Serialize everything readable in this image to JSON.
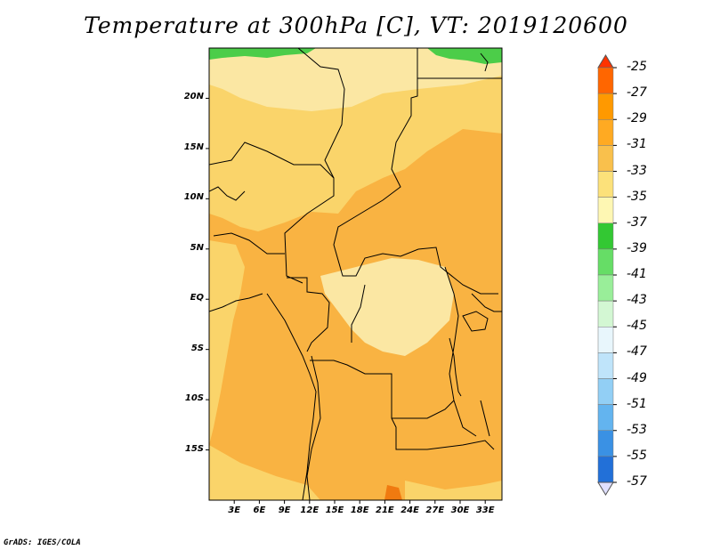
{
  "title": "Temperature at 300hPa [C], VT: 2019120600",
  "credit": "GrADS: IGES/COLA",
  "map": {
    "projection": "lat-lon",
    "lon_range": [
      0,
      35
    ],
    "lat_range": [
      -20,
      25
    ],
    "lat_labels": [
      "20N",
      "15N",
      "10N",
      "5N",
      "EQ",
      "5S",
      "10S",
      "15S"
    ],
    "lat_values": [
      20,
      15,
      10,
      5,
      0,
      -5,
      -10,
      -15
    ],
    "lon_labels": [
      "3E",
      "6E",
      "9E",
      "12E",
      "15E",
      "18E",
      "21E",
      "24E",
      "27E",
      "30E",
      "33E"
    ],
    "lon_values": [
      3,
      6,
      9,
      12,
      15,
      18,
      21,
      24,
      27,
      30,
      33
    ],
    "field": "Temperature at 300hPa",
    "units": "C"
  },
  "colorbar": {
    "orientation": "vertical",
    "placement": "right",
    "labels": [
      "-25",
      "-27",
      "-29",
      "-31",
      "-33",
      "-35",
      "-37",
      "-39",
      "-41",
      "-43",
      "-45",
      "-47",
      "-49",
      "-51",
      "-53",
      "-55",
      "-57"
    ],
    "colors": [
      "#ff3300",
      "#ff6600",
      "#ff9900",
      "#ffaa22",
      "#f9c04c",
      "#fce17a",
      "#fef7b3",
      "#33c833",
      "#66dd66",
      "#99ee99",
      "#d3f7d3",
      "#e8f6fc",
      "#bfe4fa",
      "#92cff5",
      "#63b4ef",
      "#3a91e4",
      "#2270d8",
      "#155ac4",
      "#0d3ea6",
      "#0b1d80",
      "#e0e0ff"
    ],
    "end_arrows": true
  },
  "palette": {
    "warm_dominant": "#f9b342",
    "mid": "#fad46a",
    "cool_light": "#fbe7a3",
    "green": "#4ccd49",
    "coast": "#000000"
  }
}
